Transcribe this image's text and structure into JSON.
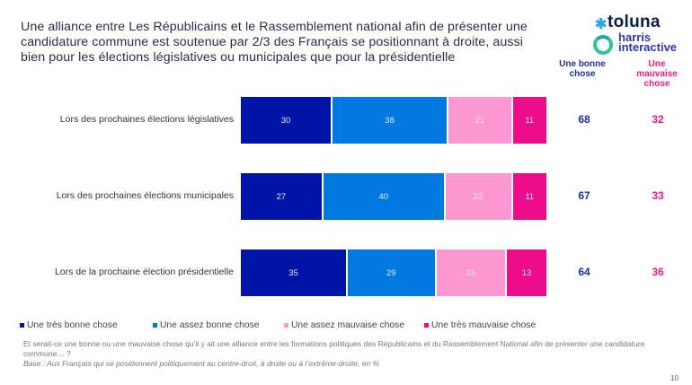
{
  "title": "Une alliance entre Les Républicains et le Rassemblement national afin de présenter une candidature commune est soutenue par 2/3 des Français se positionnant à droite, aussi bien pour les élections législatives ou municipales que pour la présidentielle",
  "logo": {
    "brand": "toluna",
    "sub_line1": "harris",
    "sub_line2": "interactive",
    "star_icon": "✱"
  },
  "column_headers": {
    "positive": "Une bonne chose",
    "negative": "Une mauvaise chose"
  },
  "colors": {
    "tres_bonne": "#0014a8",
    "assez_bonne": "#0079e0",
    "assez_mauvaise": "#fb98d2",
    "tres_mauvaise": "#ec0c8c",
    "positive_total": "#1a2ea8",
    "negative_total": "#ec1a8c"
  },
  "chart_data": {
    "type": "bar",
    "orientation": "horizontal-stacked",
    "unit": "%",
    "categories": [
      "Lors des prochaines élections législatives",
      "Lors des prochaines élections municipales",
      "Lors de la prochaine élection présidentielle"
    ],
    "series": [
      {
        "name": "Une très bonne chose",
        "values": [
          30,
          27,
          35
        ]
      },
      {
        "name": "Une assez bonne chose",
        "values": [
          38,
          40,
          29
        ]
      },
      {
        "name": "Une assez mauvaise chose",
        "values": [
          21,
          22,
          23
        ]
      },
      {
        "name": "Une très mauvaise chose",
        "values": [
          11,
          11,
          13
        ]
      }
    ],
    "totals": {
      "Une bonne chose": [
        68,
        67,
        64
      ],
      "Une mauvaise chose": [
        32,
        33,
        36
      ]
    },
    "xlim": [
      0,
      100
    ],
    "legend": "bottom-left"
  },
  "footnote": {
    "question": "Et serait-ce une bonne ou une mauvaise chose qu’il y ait une alliance entre les formations politiques des Républicains et du Rassemblement National afin de présenter une candidature commune… ?",
    "base": "Base : Aux Français qui se positionnent politiquement au centre-droit, à droite ou à l’extrême-droite, en %"
  },
  "page_number": "10"
}
